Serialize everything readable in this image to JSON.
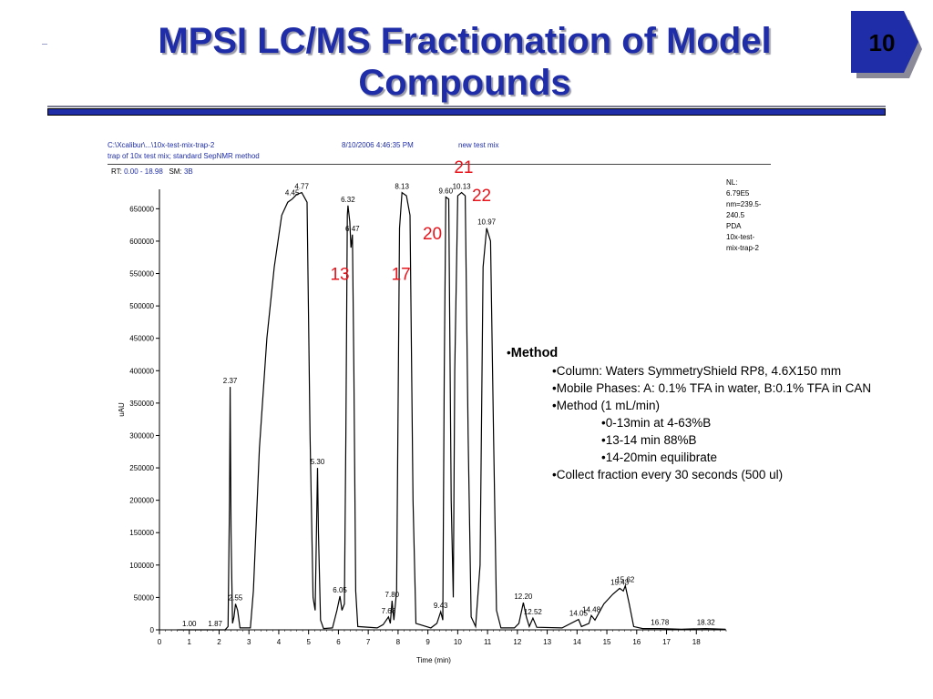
{
  "slide": {
    "title": "MPSI LC/MS Fractionation of Model Compounds",
    "page_number": "10",
    "colors": {
      "title": "#1f2ea8",
      "accent_red": "#e8141c"
    }
  },
  "chromatogram_header": {
    "file_path": "C:\\Xcalibur\\...\\10x-test-mix-trap-2",
    "timestamp": "8/10/2006 4:46:35 PM",
    "sample": "new test mix",
    "description": "trap of 10x test mix; standard SepNMR method",
    "rt_label": "RT:",
    "rt_value": "0.00 - 18.98",
    "sm_label": "SM:",
    "sm_value": "3B"
  },
  "nl_info": {
    "lines": [
      "NL:",
      "6.79E5",
      "nm=239.5-",
      "240.5",
      "PDA",
      "10x-test-",
      "mix-trap-2"
    ]
  },
  "method": {
    "heading": "Method",
    "items": [
      {
        "level": 1,
        "text": "Column:  Waters SymmetryShield RP8, 4.6X150 mm"
      },
      {
        "level": 1,
        "text": "Mobile Phases:  A:  0.1% TFA in water, B:0.1% TFA in CAN"
      },
      {
        "level": 1,
        "text": "Method (1 mL/min)"
      },
      {
        "level": 2,
        "text": "0-13min at 4-63%B"
      },
      {
        "level": 2,
        "text": "13-14 min 88%B"
      },
      {
        "level": 2,
        "text": "14-20min equilibrate"
      },
      {
        "level": 1,
        "text": "Collect fraction every 30 seconds (500 ul)"
      }
    ]
  },
  "chart_data": {
    "type": "line",
    "title": "",
    "xlabel": "Time (min)",
    "ylabel": "uAU",
    "xlim": [
      0,
      19
    ],
    "ylim": [
      0,
      680000
    ],
    "x_ticks": [
      0,
      1,
      2,
      3,
      4,
      5,
      6,
      7,
      8,
      9,
      10,
      11,
      12,
      13,
      14,
      15,
      16,
      17,
      18
    ],
    "y_ticks": [
      0,
      50000,
      100000,
      150000,
      200000,
      250000,
      300000,
      350000,
      400000,
      450000,
      500000,
      550000,
      600000,
      650000
    ],
    "grid": false,
    "peak_labels": [
      {
        "x": 1.0,
        "label": "1.00",
        "y": 0
      },
      {
        "x": 1.87,
        "label": "1.87",
        "y": 0
      },
      {
        "x": 2.37,
        "label": "2.37",
        "y": 375000
      },
      {
        "x": 2.55,
        "label": "2.55",
        "y": 40000
      },
      {
        "x": 4.45,
        "label": "4.45",
        "y": 665000
      },
      {
        "x": 4.77,
        "label": "4.77",
        "y": 675000
      },
      {
        "x": 5.3,
        "label": "5.30",
        "y": 250000
      },
      {
        "x": 6.05,
        "label": "6.05",
        "y": 52000
      },
      {
        "x": 6.32,
        "label": "6.32",
        "y": 655000
      },
      {
        "x": 6.47,
        "label": "6.47",
        "y": 610000
      },
      {
        "x": 7.68,
        "label": "7.68",
        "y": 20000
      },
      {
        "x": 7.8,
        "label": "7.80",
        "y": 45000
      },
      {
        "x": 8.13,
        "label": "8.13",
        "y": 675000
      },
      {
        "x": 9.43,
        "label": "9.43",
        "y": 28000
      },
      {
        "x": 9.6,
        "label": "9.60",
        "y": 668000
      },
      {
        "x": 10.13,
        "label": "10.13",
        "y": 675000
      },
      {
        "x": 10.97,
        "label": "10.97",
        "y": 620000
      },
      {
        "x": 12.2,
        "label": "12.20",
        "y": 42000
      },
      {
        "x": 12.52,
        "label": "12.52",
        "y": 18000
      },
      {
        "x": 14.05,
        "label": "14.05",
        "y": 16000
      },
      {
        "x": 14.48,
        "label": "14.48",
        "y": 22000
      },
      {
        "x": 15.43,
        "label": "15.43",
        "y": 64000
      },
      {
        "x": 15.62,
        "label": "15.62",
        "y": 68000
      },
      {
        "x": 16.78,
        "label": "16.78",
        "y": 2000
      },
      {
        "x": 18.32,
        "label": "18.32",
        "y": 2000
      }
    ],
    "fraction_labels": [
      {
        "label": "21",
        "x": 10.2,
        "y": 705000
      },
      {
        "label": "22",
        "x": 10.8,
        "y": 662000
      },
      {
        "label": "20",
        "x": 9.15,
        "y": 603000
      },
      {
        "label": "13",
        "x": 6.05,
        "y": 540000
      },
      {
        "label": "17",
        "x": 8.1,
        "y": 540000
      }
    ],
    "trace": [
      [
        0.6,
        0
      ],
      [
        1.9,
        0
      ],
      [
        2.2,
        0
      ],
      [
        2.3,
        5000
      ],
      [
        2.35,
        200000
      ],
      [
        2.37,
        375000
      ],
      [
        2.4,
        150000
      ],
      [
        2.45,
        10000
      ],
      [
        2.5,
        20000
      ],
      [
        2.55,
        40000
      ],
      [
        2.62,
        30000
      ],
      [
        2.7,
        3000
      ],
      [
        3.05,
        3000
      ],
      [
        3.15,
        60000
      ],
      [
        3.35,
        280000
      ],
      [
        3.6,
        450000
      ],
      [
        3.85,
        560000
      ],
      [
        4.1,
        640000
      ],
      [
        4.3,
        660000
      ],
      [
        4.45,
        665000
      ],
      [
        4.6,
        672000
      ],
      [
        4.77,
        675000
      ],
      [
        4.95,
        660000
      ],
      [
        5.05,
        300000
      ],
      [
        5.15,
        50000
      ],
      [
        5.22,
        30000
      ],
      [
        5.28,
        200000
      ],
      [
        5.3,
        250000
      ],
      [
        5.33,
        150000
      ],
      [
        5.4,
        15000
      ],
      [
        5.5,
        2000
      ],
      [
        5.8,
        3000
      ],
      [
        5.95,
        30000
      ],
      [
        6.05,
        52000
      ],
      [
        6.12,
        30000
      ],
      [
        6.2,
        40000
      ],
      [
        6.25,
        300000
      ],
      [
        6.3,
        640000
      ],
      [
        6.32,
        655000
      ],
      [
        6.38,
        630000
      ],
      [
        6.42,
        590000
      ],
      [
        6.47,
        610000
      ],
      [
        6.52,
        400000
      ],
      [
        6.58,
        60000
      ],
      [
        6.65,
        5000
      ],
      [
        7.3,
        3000
      ],
      [
        7.5,
        8000
      ],
      [
        7.68,
        20000
      ],
      [
        7.74,
        10000
      ],
      [
        7.8,
        45000
      ],
      [
        7.86,
        15000
      ],
      [
        7.95,
        60000
      ],
      [
        8.05,
        620000
      ],
      [
        8.13,
        675000
      ],
      [
        8.28,
        670000
      ],
      [
        8.4,
        640000
      ],
      [
        8.5,
        200000
      ],
      [
        8.6,
        10000
      ],
      [
        9.1,
        3000
      ],
      [
        9.3,
        10000
      ],
      [
        9.43,
        28000
      ],
      [
        9.5,
        15000
      ],
      [
        9.55,
        400000
      ],
      [
        9.6,
        668000
      ],
      [
        9.7,
        665000
      ],
      [
        9.78,
        200000
      ],
      [
        9.85,
        50000
      ],
      [
        9.9,
        400000
      ],
      [
        10.0,
        670000
      ],
      [
        10.13,
        675000
      ],
      [
        10.25,
        670000
      ],
      [
        10.35,
        300000
      ],
      [
        10.45,
        20000
      ],
      [
        10.6,
        5000
      ],
      [
        10.75,
        100000
      ],
      [
        10.85,
        560000
      ],
      [
        10.97,
        620000
      ],
      [
        11.1,
        600000
      ],
      [
        11.2,
        300000
      ],
      [
        11.3,
        30000
      ],
      [
        11.45,
        3000
      ],
      [
        11.9,
        3000
      ],
      [
        12.05,
        10000
      ],
      [
        12.2,
        42000
      ],
      [
        12.3,
        20000
      ],
      [
        12.4,
        5000
      ],
      [
        12.52,
        18000
      ],
      [
        12.65,
        4000
      ],
      [
        13.5,
        3000
      ],
      [
        14.05,
        16000
      ],
      [
        14.15,
        5000
      ],
      [
        14.4,
        10000
      ],
      [
        14.48,
        22000
      ],
      [
        14.6,
        15000
      ],
      [
        14.9,
        40000
      ],
      [
        15.2,
        55000
      ],
      [
        15.43,
        64000
      ],
      [
        15.55,
        60000
      ],
      [
        15.62,
        68000
      ],
      [
        15.75,
        40000
      ],
      [
        15.9,
        5000
      ],
      [
        16.2,
        2000
      ],
      [
        16.78,
        2000
      ],
      [
        17.5,
        1000
      ],
      [
        18.32,
        2000
      ],
      [
        18.98,
        1000
      ]
    ]
  }
}
